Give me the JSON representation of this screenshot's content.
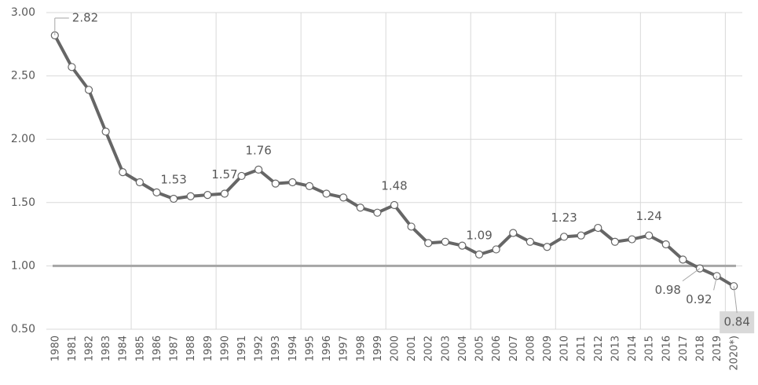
{
  "chart_data": {
    "type": "line",
    "categories": [
      "1980",
      "1981",
      "1982",
      "1983",
      "1984",
      "1985",
      "1986",
      "1987",
      "1988",
      "1989",
      "1990",
      "1991",
      "1992",
      "1993",
      "1994",
      "1995",
      "1996",
      "1997",
      "1998",
      "1999",
      "2000",
      "2001",
      "2002",
      "2003",
      "2004",
      "2005",
      "2006",
      "2007",
      "2008",
      "2009",
      "2010",
      "2011",
      "2012",
      "2013",
      "2014",
      "2015",
      "2016",
      "2017",
      "2018",
      "2019",
      "2020*)"
    ],
    "series": [
      {
        "color": "#666666",
        "values": [
          2.82,
          2.57,
          2.39,
          2.06,
          1.74,
          1.66,
          1.58,
          1.53,
          1.55,
          1.56,
          1.57,
          1.71,
          1.76,
          1.65,
          1.66,
          1.63,
          1.57,
          1.54,
          1.46,
          1.42,
          1.48,
          1.31,
          1.18,
          1.19,
          1.16,
          1.09,
          1.13,
          1.26,
          1.19,
          1.15,
          1.23,
          1.24,
          1.3,
          1.19,
          1.21,
          1.24,
          1.17,
          1.05,
          0.98,
          0.92,
          0.84
        ],
        "value_labels": [
          "2.82",
          null,
          null,
          null,
          null,
          null,
          null,
          "1.53",
          null,
          null,
          "1.57",
          null,
          "1.76",
          null,
          null,
          null,
          null,
          null,
          null,
          null,
          "1.48",
          null,
          null,
          null,
          null,
          "1.09",
          null,
          null,
          null,
          null,
          "1.23",
          null,
          null,
          null,
          null,
          "1.24",
          null,
          null,
          "0.98",
          "0.92",
          "0.84"
        ]
      }
    ],
    "ylim": [
      0.5,
      3.0
    ],
    "yticks": [
      {
        "value": 0.5,
        "label": "0.50"
      },
      {
        "value": 1.0,
        "label": "1.00"
      },
      {
        "value": 1.5,
        "label": "1.50"
      },
      {
        "value": 2.0,
        "label": "2.00"
      },
      {
        "value": 2.5,
        "label": "2.50"
      },
      {
        "value": 3.0,
        "label": "3.00"
      }
    ],
    "reference_line": 1.0,
    "grid": true
  }
}
